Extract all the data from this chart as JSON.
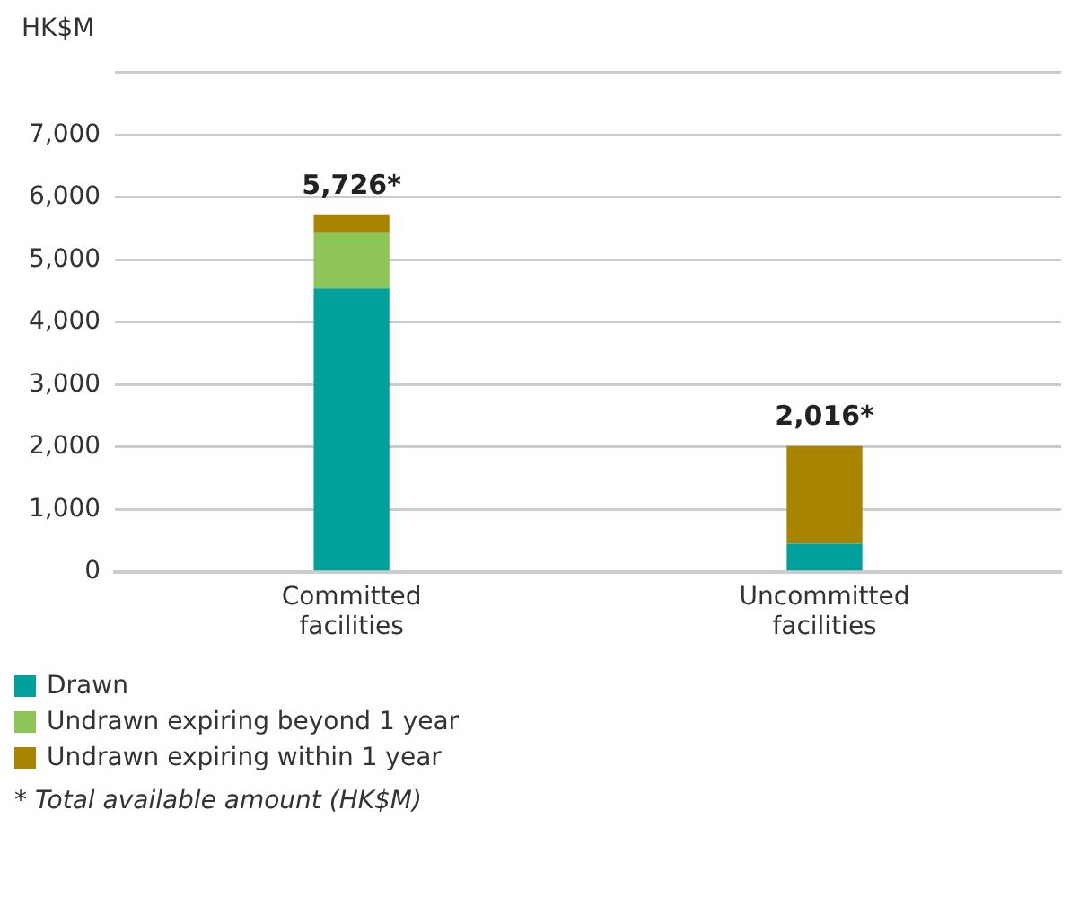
{
  "chart_data": {
    "type": "bar",
    "stacked": true,
    "ylabel": "HK$M",
    "categories": [
      "Committed facilities",
      "Uncommitted facilities"
    ],
    "series": [
      {
        "name": "Drawn",
        "color": "#00a19c",
        "values": [
          4540,
          450
        ]
      },
      {
        "name": "Undrawn expiring beyond 1 year",
        "color": "#8dc558",
        "values": [
          900,
          0
        ]
      },
      {
        "name": "Undrawn expiring within 1 year",
        "color": "#a88400",
        "values": [
          286,
          1566
        ]
      }
    ],
    "totals": [
      "5,726*",
      "2,016*"
    ],
    "ylim": [
      0,
      8000
    ],
    "yticks": [
      0,
      {
        "value": 1000,
        "label": "1,000"
      },
      {
        "value": 2000,
        "label": "2,000"
      },
      {
        "value": 3000,
        "label": "3,000"
      },
      {
        "value": 4000,
        "label": "4,000"
      },
      {
        "value": 5000,
        "label": "5,000"
      },
      {
        "value": 6000,
        "label": "6,000"
      },
      {
        "value": 7000,
        "label": "7,000"
      },
      {
        "value": 8000,
        "label": null
      }
    ],
    "grid": "y",
    "legend": "bottom",
    "annotations": [
      "* Total available amount (HK$M)"
    ]
  }
}
